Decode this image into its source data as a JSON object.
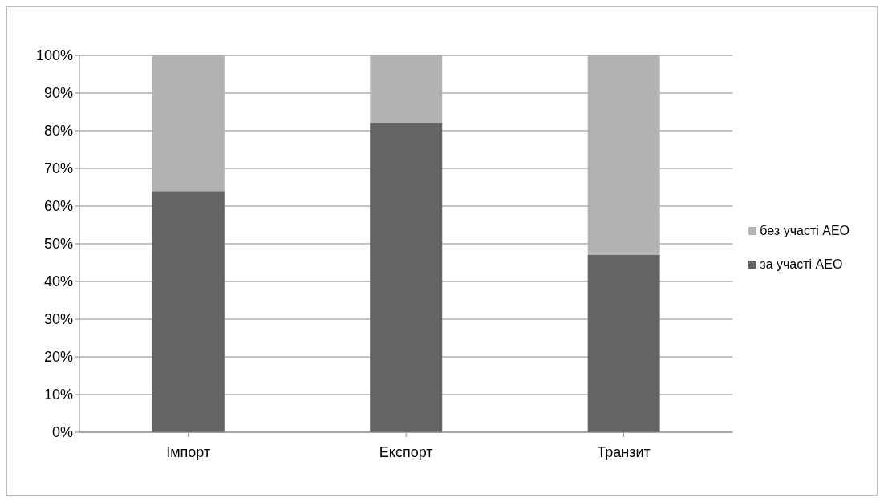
{
  "chart_data": {
    "type": "bar",
    "stacked": true,
    "categories": [
      "Імпорт",
      "Експорт",
      "Транзит"
    ],
    "series": [
      {
        "name": "за участі АЕО",
        "color": "#646464",
        "values": [
          64,
          82,
          47
        ]
      },
      {
        "name": "без участі АЕО",
        "color": "#b2b2b2",
        "values": [
          36,
          18,
          53
        ]
      }
    ],
    "ylim": [
      0,
      100
    ],
    "yticks": [
      {
        "value": 0,
        "label": "0%"
      },
      {
        "value": 10,
        "label": "10%"
      },
      {
        "value": 20,
        "label": "20%"
      },
      {
        "value": 30,
        "label": "30%"
      },
      {
        "value": 40,
        "label": "40%"
      },
      {
        "value": 50,
        "label": "50%"
      },
      {
        "value": 60,
        "label": "60%"
      },
      {
        "value": 70,
        "label": "70%"
      },
      {
        "value": 80,
        "label": "80%"
      },
      {
        "value": 90,
        "label": "90%"
      },
      {
        "value": 100,
        "label": "100%"
      }
    ],
    "grid": "y",
    "legend": "right"
  }
}
